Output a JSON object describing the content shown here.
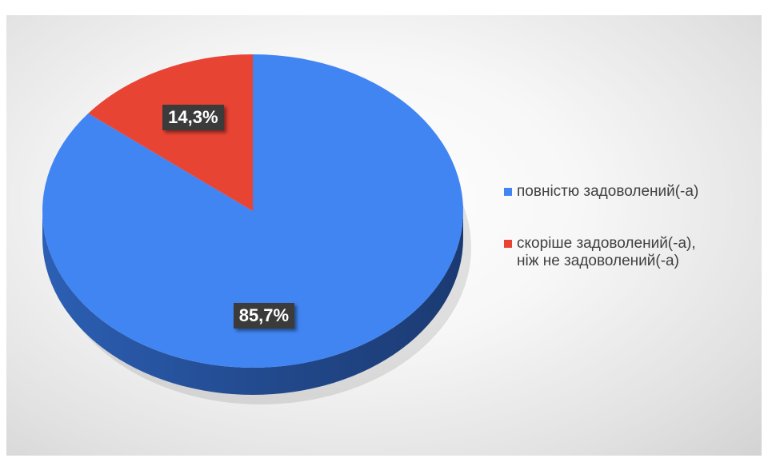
{
  "colors": {
    "series_1": "#4185f3",
    "series_1_side": "#2c5fb4",
    "series_2": "#e84434",
    "series_2_side": "#a83225",
    "label_bg": "#3b3b3b"
  },
  "chart_data": {
    "type": "pie",
    "style": "3d-perspective",
    "legend_position": "right",
    "slices": [
      {
        "name": "повністю задоволений(-а)",
        "value": 85.7,
        "label": "85,7%"
      },
      {
        "name": "скоріше задоволений(-а),\nніж не задоволений(-а)",
        "value": 14.3,
        "label": "14,3%"
      }
    ]
  }
}
